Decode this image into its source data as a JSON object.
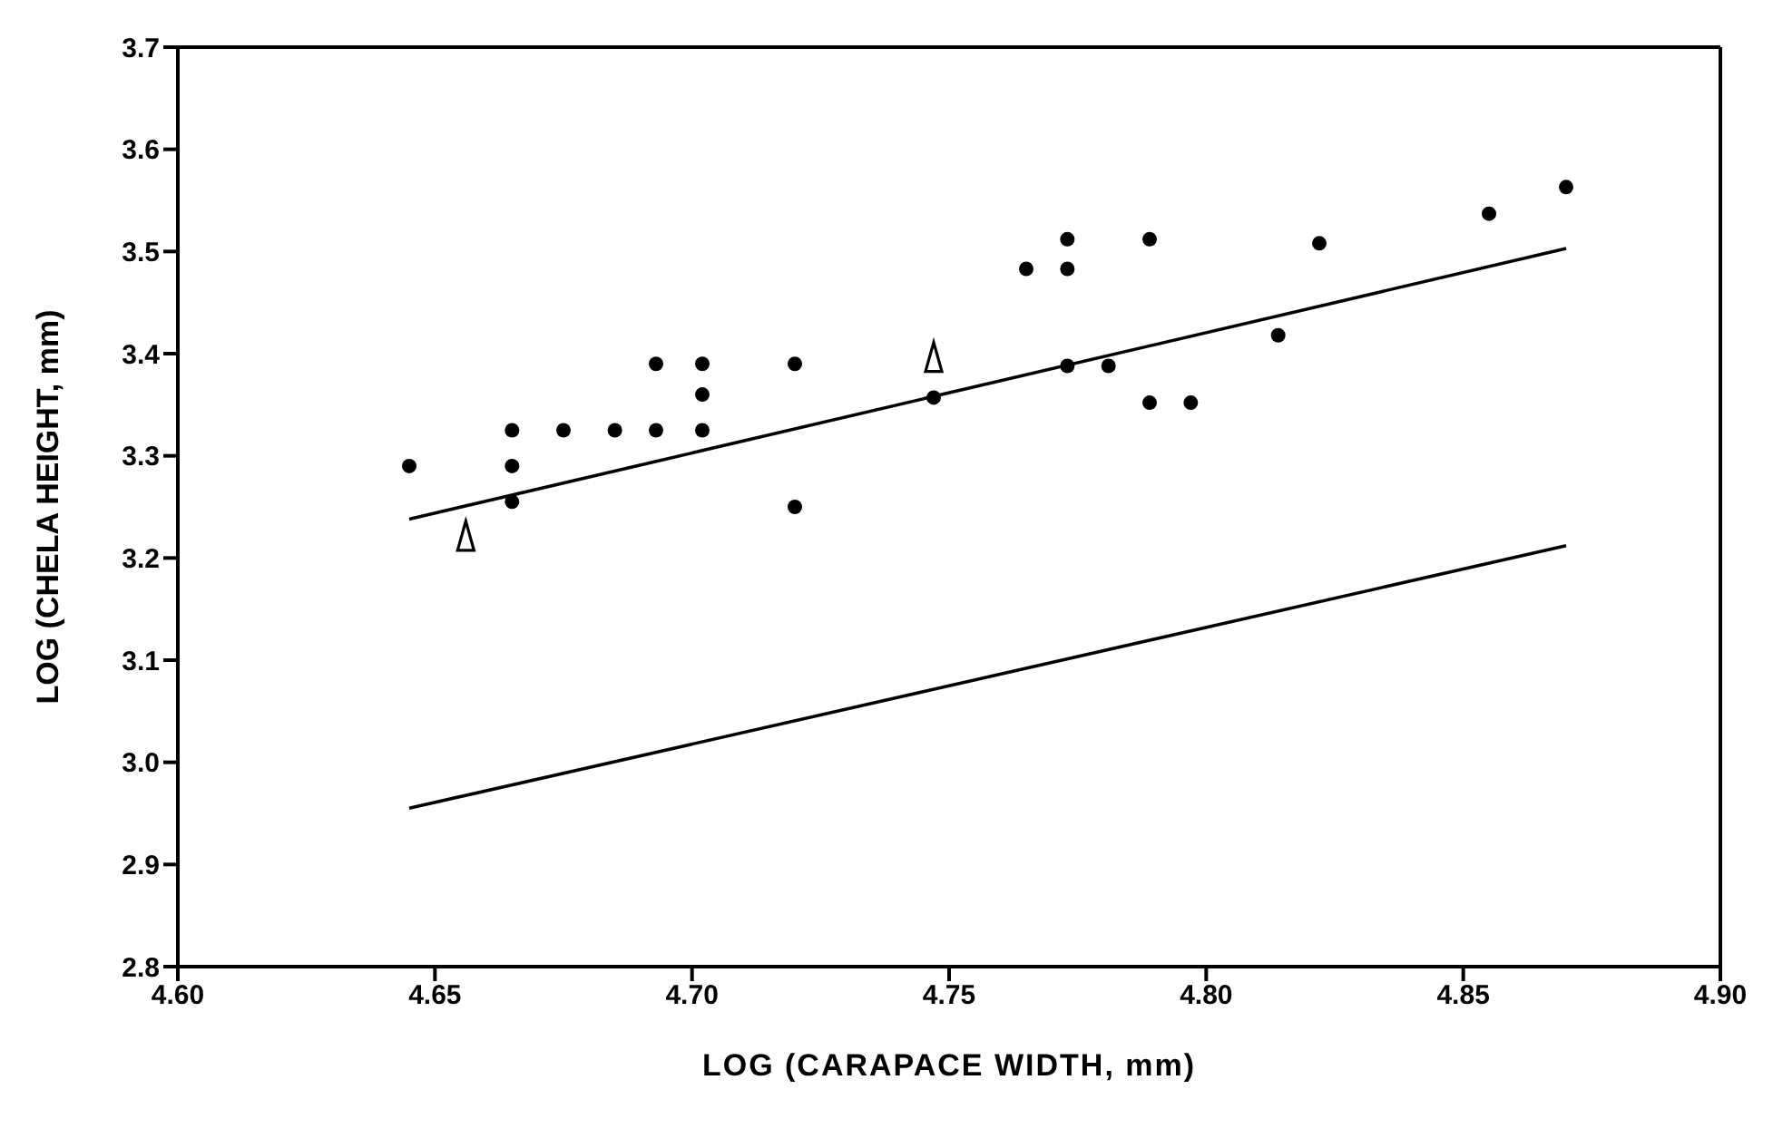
{
  "chart_data": {
    "type": "scatter",
    "xlabel": "LOG (CARAPACE WIDTH, mm)",
    "ylabel": "LOG (CHELA HEIGHT, mm)",
    "xlim": [
      4.6,
      4.9
    ],
    "ylim": [
      2.8,
      3.7
    ],
    "xticks": [
      {
        "value": 4.6,
        "label": "4.60"
      },
      {
        "value": 4.65,
        "label": "4.65"
      },
      {
        "value": 4.7,
        "label": "4.70"
      },
      {
        "value": 4.75,
        "label": "4.75"
      },
      {
        "value": 4.8,
        "label": "4.80"
      },
      {
        "value": 4.85,
        "label": "4.85"
      },
      {
        "value": 4.9,
        "label": "4.90"
      }
    ],
    "yticks": [
      2.8,
      2.9,
      {
        "value": 3.0,
        "label": "3.0"
      },
      3.1,
      3.2,
      3.3,
      3.4,
      3.5,
      3.6,
      3.7
    ],
    "series": [
      {
        "marker": "circle",
        "color": "#000000",
        "x": [
          4.645,
          4.665,
          4.665,
          4.665,
          4.675,
          4.685,
          4.693,
          4.693,
          4.702,
          4.702,
          4.702,
          4.72,
          4.72,
          4.747,
          4.765,
          4.773,
          4.773,
          4.773,
          4.781,
          4.789,
          4.789,
          4.797,
          4.814,
          4.822,
          4.855,
          4.87
        ],
        "values": [
          3.29,
          3.325,
          3.29,
          3.255,
          3.325,
          3.325,
          3.325,
          3.39,
          3.39,
          3.36,
          3.325,
          3.39,
          3.25,
          3.357,
          3.483,
          3.512,
          3.483,
          3.388,
          3.388,
          3.512,
          3.352,
          3.352,
          3.418,
          3.508,
          3.537,
          3.563
        ]
      },
      {
        "marker": "triangle",
        "color": "#000000",
        "x": [
          4.656,
          4.747
        ],
        "values": [
          3.22,
          3.395
        ]
      },
      {
        "type": "line",
        "marker": "none",
        "line_style": "solid",
        "color": "#000000",
        "x": [
          4.645,
          4.87
        ],
        "values": [
          3.238,
          3.503
        ]
      },
      {
        "type": "line",
        "marker": "none",
        "line_style": "solid",
        "color": "#000000",
        "x": [
          4.645,
          4.87
        ],
        "values": [
          2.955,
          3.212
        ]
      }
    ]
  }
}
